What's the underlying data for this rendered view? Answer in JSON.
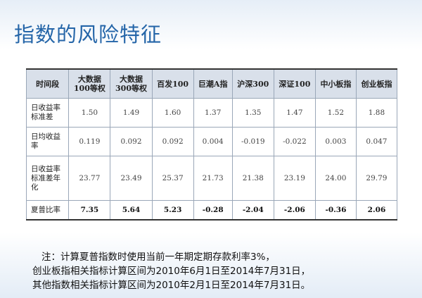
{
  "header": {
    "title": "指数的风险特征"
  },
  "table": {
    "columns": [
      "时间段",
      "大数据\n100等权",
      "大数据\n300等权",
      "百发100",
      "巨潮A指",
      "沪深300",
      "深证100",
      "中小板指",
      "创业板指"
    ],
    "rows": [
      [
        "日收益率\n标准差",
        "1.50",
        "1.49",
        "1.60",
        "1.37",
        "1.35",
        "1.47",
        "1.52",
        "1.88"
      ],
      [
        "日均收益\n率",
        "0.119",
        "0.092",
        "0.092",
        "0.004",
        "-0.019",
        "-0.022",
        "0.003",
        "0.047"
      ],
      [
        "日收益率\n标准差年\n化",
        "23.77",
        "23.49",
        "25.37",
        "21.73",
        "21.38",
        "23.19",
        "24.00",
        "29.79"
      ],
      [
        "夏普比率",
        "7.35",
        "5.64",
        "5.23",
        "-0.28",
        "-2.04",
        "-2.06",
        "-0.36",
        "2.06"
      ]
    ]
  },
  "notes": [
    "注：计算夏普指数时使用当前一年期定期存款利率3%，",
    "创业板指相关指标计算区间为2010年6月1日至2014年7月31日，",
    "其他指数相关指标计算区间为2010年2月1日至2014年7月31日。"
  ]
}
